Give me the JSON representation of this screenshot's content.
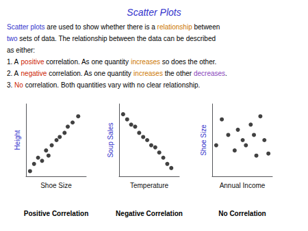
{
  "title": "Scatter Plots",
  "annotations": [
    [
      {
        "text": "Scatter plots",
        "color": "#3333cc"
      },
      {
        "text": " are used to show whether there is a ",
        "color": "#000000"
      },
      {
        "text": "relationship",
        "color": "#cc7700"
      },
      {
        "text": " between",
        "color": "#000000"
      }
    ],
    [
      {
        "text": "two",
        "color": "#3333cc"
      },
      {
        "text": " sets of data. The relationship between the data can be described",
        "color": "#000000"
      }
    ],
    [
      {
        "text": "as either:",
        "color": "#000000"
      }
    ],
    [
      {
        "text": "1. A ",
        "color": "#000000"
      },
      {
        "text": "positive",
        "color": "#cc2200"
      },
      {
        "text": " correlation. As one quantity ",
        "color": "#000000"
      },
      {
        "text": "increases",
        "color": "#cc7700"
      },
      {
        "text": " so does the other.",
        "color": "#000000"
      }
    ],
    [
      {
        "text": "2. A ",
        "color": "#000000"
      },
      {
        "text": "negative",
        "color": "#cc2200"
      },
      {
        "text": " correlation. As one quantity ",
        "color": "#000000"
      },
      {
        "text": "increases",
        "color": "#cc7700"
      },
      {
        "text": " the other ",
        "color": "#000000"
      },
      {
        "text": "decreases",
        "color": "#8844bb"
      },
      {
        "text": ".",
        "color": "#000000"
      }
    ],
    [
      {
        "text": "3. ",
        "color": "#000000"
      },
      {
        "text": "No",
        "color": "#cc2200"
      },
      {
        "text": " correlation. Both quantities vary with no clear relationship.",
        "color": "#000000"
      }
    ]
  ],
  "chart_data": [
    {
      "type": "scatter",
      "title": "Positive Correlation",
      "xlabel": "Shoe Size",
      "ylabel": "Height",
      "x": [
        0.5,
        1.0,
        1.5,
        2.0,
        2.5,
        2.8,
        3.2,
        3.8,
        4.2,
        4.8,
        5.2,
        5.8,
        6.5
      ],
      "values": [
        0.5,
        1.2,
        1.8,
        1.5,
        2.5,
        2.0,
        3.0,
        3.5,
        3.8,
        4.2,
        4.8,
        5.2,
        5.8
      ],
      "color": "#111111",
      "xlim": [
        0,
        7.5
      ],
      "ylim": [
        0,
        7
      ],
      "xticks": [],
      "yticks": [],
      "tick_labels": false,
      "grid": false
    },
    {
      "type": "scatter",
      "title": "Negative Correlation",
      "xlabel": "Temperature",
      "ylabel": "Soup Sales",
      "x": [
        0.5,
        1.0,
        1.5,
        2.0,
        2.5,
        3.0,
        3.5,
        4.0,
        4.5,
        5.0,
        5.5,
        6.0,
        6.5
      ],
      "values": [
        6.0,
        5.5,
        5.0,
        4.8,
        4.2,
        3.8,
        3.5,
        3.0,
        2.8,
        2.3,
        1.8,
        1.2,
        0.8
      ],
      "color": "#111111",
      "xlim": [
        0,
        7.5
      ],
      "ylim": [
        0,
        7
      ],
      "xticks": [],
      "yticks": [],
      "tick_labels": false,
      "grid": false
    },
    {
      "type": "scatter",
      "title": "No Correlation",
      "xlabel": "Annual Income",
      "ylabel": "Shoe Size",
      "x": [
        0.5,
        1.2,
        2.0,
        2.8,
        3.2,
        3.8,
        4.2,
        4.8,
        5.2,
        5.5,
        6.0,
        6.5,
        7.0
      ],
      "values": [
        3.0,
        5.5,
        4.0,
        2.5,
        4.5,
        3.5,
        3.0,
        5.0,
        4.0,
        2.0,
        5.8,
        3.5,
        2.2
      ],
      "color": "#111111",
      "xlim": [
        0,
        7.5
      ],
      "ylim": [
        0,
        7
      ],
      "xticks": [],
      "yticks": [],
      "tick_labels": false,
      "grid": false
    }
  ]
}
